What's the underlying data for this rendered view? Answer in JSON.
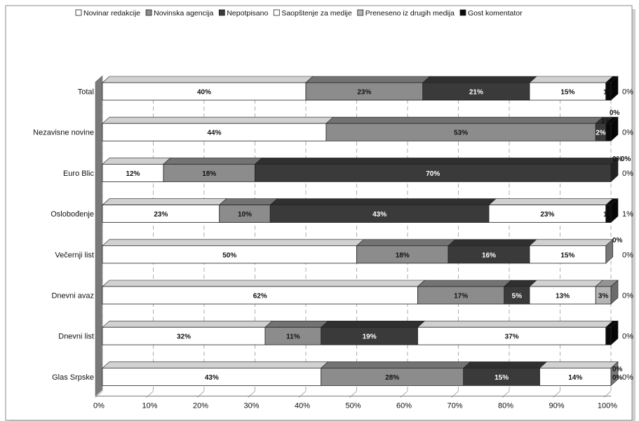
{
  "chart_data": {
    "type": "bar",
    "orientation": "horizontal",
    "stacked": "percent",
    "style": "3d",
    "categories": [
      "Total",
      "Nezavisne novine",
      "Euro Blic",
      "Oslobođenje",
      "Večernji list",
      "Dnevni avaz",
      "Dnevni list",
      "Glas Srpske"
    ],
    "series": [
      {
        "name": "Novinar redakcije",
        "color": "#ffffff",
        "text": "#111111",
        "values": [
          40,
          44,
          12,
          23,
          50,
          62,
          32,
          43
        ],
        "labels": [
          "40%",
          "44%",
          "12%",
          "23%",
          "50%",
          "62%",
          "32%",
          "43%"
        ]
      },
      {
        "name": "Novinska agencija",
        "color": "#8c8c8c",
        "text": "#111111",
        "values": [
          23,
          53,
          18,
          10,
          18,
          17,
          11,
          28
        ],
        "labels": [
          "23%",
          "53%",
          "18%",
          "10%",
          "18%",
          "17%",
          "11%",
          "28%"
        ]
      },
      {
        "name": "Nepotpisano",
        "color": "#3a3a3a",
        "text": "#ffffff",
        "values": [
          21,
          2,
          70,
          43,
          16,
          5,
          19,
          15
        ],
        "labels": [
          "21%",
          "2%",
          "70%",
          "43%",
          "16%",
          "5%",
          "19%",
          "15%"
        ]
      },
      {
        "name": "Saopštenje za medije",
        "color": "#ffffff",
        "text": "#111111",
        "values": [
          15,
          0,
          0,
          23,
          15,
          13,
          37,
          14
        ],
        "labels": [
          "15%",
          "",
          "",
          "23%",
          "15%",
          "13%",
          "37%",
          "14%"
        ]
      },
      {
        "name": "Preneseno iz drugih medija",
        "color": "#b4b4b4",
        "text": "#111111",
        "values": [
          0,
          0,
          0,
          0,
          0,
          3,
          0,
          0
        ],
        "labels": [
          "",
          "",
          "",
          "",
          "",
          "3%",
          "",
          ""
        ]
      },
      {
        "name": "Gost komentator",
        "color": "#0a0a0a",
        "text": "#111111",
        "values": [
          1,
          1,
          0,
          1,
          0,
          0,
          1,
          0
        ],
        "labels": [
          "1%",
          "",
          "",
          "1%",
          "",
          "",
          "",
          ""
        ]
      }
    ],
    "side_labels": [
      {
        "text": "0%"
      },
      {
        "text": "1%"
      },
      {
        "text": "0%"
      },
      {
        "text": "0%"
      },
      {
        "text": "0%"
      },
      {
        "text": "0%"
      },
      {
        "text": "0%"
      }
    ],
    "right_labels": [
      "0%",
      "0%",
      "0%",
      "1%",
      "0%",
      "0%",
      "0%",
      "0%"
    ],
    "x_ticks": [
      "0%",
      "10%",
      "20%",
      "30%",
      "40%",
      "50%",
      "60%",
      "70%",
      "80%",
      "90%",
      "100%"
    ],
    "xlim": [
      0,
      100
    ],
    "grid": true,
    "legend_position": "top"
  }
}
